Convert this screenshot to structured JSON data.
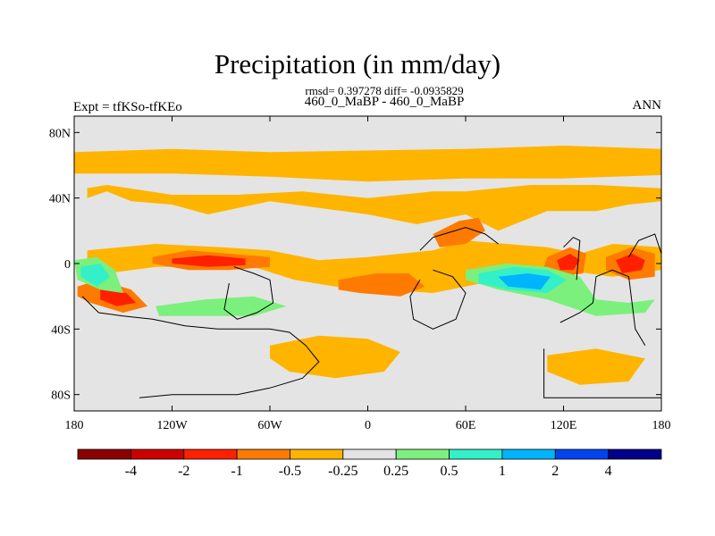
{
  "chart_data": {
    "type": "heatmap",
    "title": "Precipitation (in mm/day)",
    "stats_line": "rmsd= 0.397278 diff= -0.0935829",
    "subtitle": "460_0_MaBP - 460_0_MaBP",
    "left_label": "Expt = tfKSo-tfKEo",
    "right_label": "ANN",
    "x_axis": {
      "range": [
        180,
        540
      ],
      "ticks": [
        {
          "value": 180,
          "label": "180"
        },
        {
          "value": 240,
          "label": "120W"
        },
        {
          "value": 300,
          "label": "60W"
        },
        {
          "value": 360,
          "label": "0"
        },
        {
          "value": 420,
          "label": "60E"
        },
        {
          "value": 480,
          "label": "120E"
        },
        {
          "value": 540,
          "label": "180"
        }
      ]
    },
    "y_axis": {
      "range": [
        -90,
        90
      ],
      "ticks": [
        {
          "value": 80,
          "label": "80N"
        },
        {
          "value": 40,
          "label": "40N"
        },
        {
          "value": 0,
          "label": "0"
        },
        {
          "value": -40,
          "label": "40S"
        },
        {
          "value": -80,
          "label": "80S"
        }
      ]
    },
    "colorbar": {
      "labels": [
        "-4",
        "-2",
        "-1",
        "-0.5",
        "-0.25",
        "0.25",
        "0.5",
        "1",
        "2",
        "4"
      ],
      "colors": [
        "#8b0000",
        "#cc0000",
        "#ff2000",
        "#ff7a00",
        "#ffb400",
        "#e4e4e4",
        "#7cf07c",
        "#33f0c8",
        "#00b4ff",
        "#0044ee",
        "#00008b"
      ]
    },
    "features": [
      {
        "name": "north-band",
        "color": "#ffb400",
        "points": [
          [
            180,
            68
          ],
          [
            240,
            70
          ],
          [
            300,
            68
          ],
          [
            360,
            69
          ],
          [
            420,
            70
          ],
          [
            480,
            72
          ],
          [
            540,
            70
          ],
          [
            540,
            54
          ],
          [
            480,
            52
          ],
          [
            420,
            52
          ],
          [
            360,
            50
          ],
          [
            300,
            53
          ],
          [
            240,
            55
          ],
          [
            180,
            55
          ]
        ]
      },
      {
        "name": "north-pacific-warm",
        "color": "#ffb400",
        "points": [
          [
            188,
            40
          ],
          [
            200,
            44
          ],
          [
            215,
            38
          ],
          [
            240,
            36
          ],
          [
            262,
            30
          ],
          [
            300,
            38
          ],
          [
            330,
            34
          ],
          [
            360,
            30
          ],
          [
            390,
            24
          ],
          [
            420,
            30
          ],
          [
            440,
            20
          ],
          [
            470,
            32
          ],
          [
            500,
            32
          ],
          [
            520,
            36
          ],
          [
            540,
            38
          ],
          [
            540,
            46
          ],
          [
            500,
            48
          ],
          [
            460,
            48
          ],
          [
            420,
            44
          ],
          [
            400,
            44
          ],
          [
            360,
            40
          ],
          [
            320,
            44
          ],
          [
            280,
            42
          ],
          [
            240,
            42
          ],
          [
            200,
            48
          ],
          [
            188,
            46
          ]
        ]
      },
      {
        "name": "central-band",
        "color": "#ffb400",
        "points": [
          [
            188,
            8
          ],
          [
            230,
            12
          ],
          [
            270,
            10
          ],
          [
            300,
            8
          ],
          [
            330,
            2
          ],
          [
            360,
            4
          ],
          [
            400,
            8
          ],
          [
            420,
            14
          ],
          [
            470,
            10
          ],
          [
            490,
            6
          ],
          [
            510,
            12
          ],
          [
            540,
            10
          ],
          [
            540,
            -4
          ],
          [
            510,
            -8
          ],
          [
            480,
            -4
          ],
          [
            460,
            -10
          ],
          [
            430,
            -12
          ],
          [
            400,
            -18
          ],
          [
            370,
            -16
          ],
          [
            340,
            -14
          ],
          [
            315,
            -10
          ],
          [
            290,
            -2
          ],
          [
            260,
            -2
          ],
          [
            230,
            -2
          ],
          [
            200,
            -6
          ],
          [
            188,
            -4
          ]
        ]
      },
      {
        "name": "east-pacific-orange",
        "color": "#ff7a00",
        "points": [
          [
            228,
            4
          ],
          [
            250,
            8
          ],
          [
            275,
            6
          ],
          [
            300,
            4
          ],
          [
            300,
            -2
          ],
          [
            275,
            -4
          ],
          [
            250,
            -4
          ],
          [
            228,
            0
          ]
        ]
      },
      {
        "name": "east-pacific-red",
        "color": "#ff2000",
        "points": [
          [
            240,
            3
          ],
          [
            262,
            5
          ],
          [
            285,
            3
          ],
          [
            285,
            -1
          ],
          [
            262,
            -2
          ],
          [
            240,
            0
          ]
        ]
      },
      {
        "name": "south-west-orange",
        "color": "#ff7a00",
        "points": [
          [
            182,
            -14
          ],
          [
            195,
            -10
          ],
          [
            215,
            -16
          ],
          [
            225,
            -26
          ],
          [
            210,
            -30
          ],
          [
            190,
            -24
          ],
          [
            182,
            -20
          ]
        ]
      },
      {
        "name": "south-west-red",
        "color": "#ff2000",
        "points": [
          [
            196,
            -16
          ],
          [
            212,
            -18
          ],
          [
            218,
            -24
          ],
          [
            206,
            -26
          ],
          [
            196,
            -22
          ]
        ]
      },
      {
        "name": "atlantic-orange",
        "color": "#ff7a00",
        "points": [
          [
            342,
            -10
          ],
          [
            365,
            -6
          ],
          [
            385,
            -6
          ],
          [
            395,
            -14
          ],
          [
            380,
            -20
          ],
          [
            355,
            -18
          ],
          [
            342,
            -16
          ]
        ]
      },
      {
        "name": "west-pacific-orange",
        "color": "#ff7a00",
        "points": [
          [
            470,
            4
          ],
          [
            484,
            10
          ],
          [
            494,
            6
          ],
          [
            492,
            -6
          ],
          [
            478,
            -8
          ],
          [
            468,
            -2
          ]
        ]
      },
      {
        "name": "west-pacific-red",
        "color": "#ff2000",
        "points": [
          [
            476,
            2
          ],
          [
            484,
            6
          ],
          [
            490,
            2
          ],
          [
            486,
            -4
          ],
          [
            478,
            -4
          ]
        ]
      },
      {
        "name": "date-line-orange",
        "color": "#ff7a00",
        "points": [
          [
            506,
            4
          ],
          [
            522,
            10
          ],
          [
            536,
            6
          ],
          [
            536,
            -8
          ],
          [
            520,
            -10
          ],
          [
            506,
            -4
          ]
        ]
      },
      {
        "name": "date-line-red",
        "color": "#ff2000",
        "points": [
          [
            512,
            2
          ],
          [
            522,
            6
          ],
          [
            530,
            2
          ],
          [
            528,
            -4
          ],
          [
            516,
            -6
          ]
        ]
      },
      {
        "name": "asia-orange",
        "color": "#ff7a00",
        "points": [
          [
            400,
            18
          ],
          [
            416,
            26
          ],
          [
            428,
            28
          ],
          [
            432,
            20
          ],
          [
            420,
            12
          ],
          [
            404,
            10
          ]
        ]
      },
      {
        "name": "indian-green",
        "color": "#7cf07c",
        "points": [
          [
            420,
            -4
          ],
          [
            445,
            0
          ],
          [
            470,
            -2
          ],
          [
            490,
            -8
          ],
          [
            500,
            -22
          ],
          [
            520,
            -24
          ],
          [
            536,
            -22
          ],
          [
            530,
            -30
          ],
          [
            500,
            -32
          ],
          [
            470,
            -22
          ],
          [
            440,
            -16
          ],
          [
            420,
            -10
          ]
        ]
      },
      {
        "name": "indian-cyan",
        "color": "#33f0c8",
        "points": [
          [
            428,
            -6
          ],
          [
            450,
            -2
          ],
          [
            470,
            -4
          ],
          [
            482,
            -10
          ],
          [
            470,
            -18
          ],
          [
            446,
            -16
          ],
          [
            428,
            -12
          ]
        ]
      },
      {
        "name": "indian-blue",
        "color": "#00b4ff",
        "points": [
          [
            440,
            -8
          ],
          [
            458,
            -6
          ],
          [
            472,
            -8
          ],
          [
            466,
            -16
          ],
          [
            446,
            -14
          ]
        ]
      },
      {
        "name": "west-green",
        "color": "#7cf07c",
        "points": [
          [
            180,
            2
          ],
          [
            194,
            4
          ],
          [
            205,
            -4
          ],
          [
            210,
            -18
          ],
          [
            196,
            -16
          ],
          [
            182,
            -10
          ]
        ]
      },
      {
        "name": "west-cyan",
        "color": "#33f0c8",
        "points": [
          [
            184,
            -2
          ],
          [
            196,
            0
          ],
          [
            202,
            -8
          ],
          [
            194,
            -14
          ],
          [
            184,
            -8
          ]
        ]
      },
      {
        "name": "south-green",
        "color": "#7cf07c",
        "points": [
          [
            230,
            -26
          ],
          [
            260,
            -22
          ],
          [
            290,
            -20
          ],
          [
            310,
            -26
          ],
          [
            290,
            -32
          ],
          [
            255,
            -32
          ],
          [
            232,
            -32
          ]
        ]
      },
      {
        "name": "south-warm",
        "color": "#ffb400",
        "points": [
          [
            300,
            -50
          ],
          [
            330,
            -44
          ],
          [
            360,
            -46
          ],
          [
            380,
            -54
          ],
          [
            370,
            -66
          ],
          [
            340,
            -70
          ],
          [
            312,
            -66
          ],
          [
            300,
            -58
          ]
        ]
      },
      {
        "name": "far-south-warm",
        "color": "#ffb400",
        "points": [
          [
            470,
            -56
          ],
          [
            500,
            -52
          ],
          [
            530,
            -58
          ],
          [
            520,
            -72
          ],
          [
            490,
            -74
          ],
          [
            470,
            -66
          ]
        ]
      }
    ]
  },
  "coastlines": [
    [
      [
        185,
        -20
      ],
      [
        195,
        -30
      ],
      [
        210,
        -32
      ],
      [
        228,
        -34
      ],
      [
        248,
        -38
      ],
      [
        268,
        -40
      ],
      [
        300,
        -40
      ],
      [
        312,
        -42
      ],
      [
        322,
        -50
      ],
      [
        330,
        -60
      ],
      [
        320,
        -70
      ],
      [
        300,
        -76
      ],
      [
        280,
        -80
      ],
      [
        240,
        -80
      ],
      [
        220,
        -82
      ]
    ],
    [
      [
        278,
        -2
      ],
      [
        290,
        -6
      ],
      [
        300,
        -10
      ],
      [
        302,
        -24
      ],
      [
        292,
        -30
      ],
      [
        280,
        -34
      ],
      [
        272,
        -28
      ],
      [
        275,
        -12
      ]
    ],
    [
      [
        400,
        -4
      ],
      [
        412,
        -8
      ],
      [
        420,
        -18
      ],
      [
        414,
        -34
      ],
      [
        400,
        -40
      ],
      [
        388,
        -34
      ],
      [
        386,
        -20
      ],
      [
        392,
        -10
      ]
    ],
    [
      [
        392,
        8
      ],
      [
        400,
        16
      ],
      [
        420,
        22
      ],
      [
        432,
        18
      ],
      [
        440,
        12
      ]
    ],
    [
      [
        478,
        -36
      ],
      [
        490,
        -30
      ],
      [
        498,
        -24
      ],
      [
        500,
        -8
      ],
      [
        510,
        -4
      ],
      [
        520,
        -8
      ],
      [
        524,
        -40
      ],
      [
        530,
        -50
      ]
    ],
    [
      [
        468,
        -52
      ],
      [
        468,
        -82
      ],
      [
        540,
        -82
      ]
    ],
    [
      [
        520,
        4
      ],
      [
        526,
        14
      ],
      [
        536,
        18
      ],
      [
        540,
        6
      ]
    ],
    [
      [
        480,
        10
      ],
      [
        486,
        16
      ],
      [
        490,
        14
      ],
      [
        488,
        -10
      ]
    ]
  ]
}
